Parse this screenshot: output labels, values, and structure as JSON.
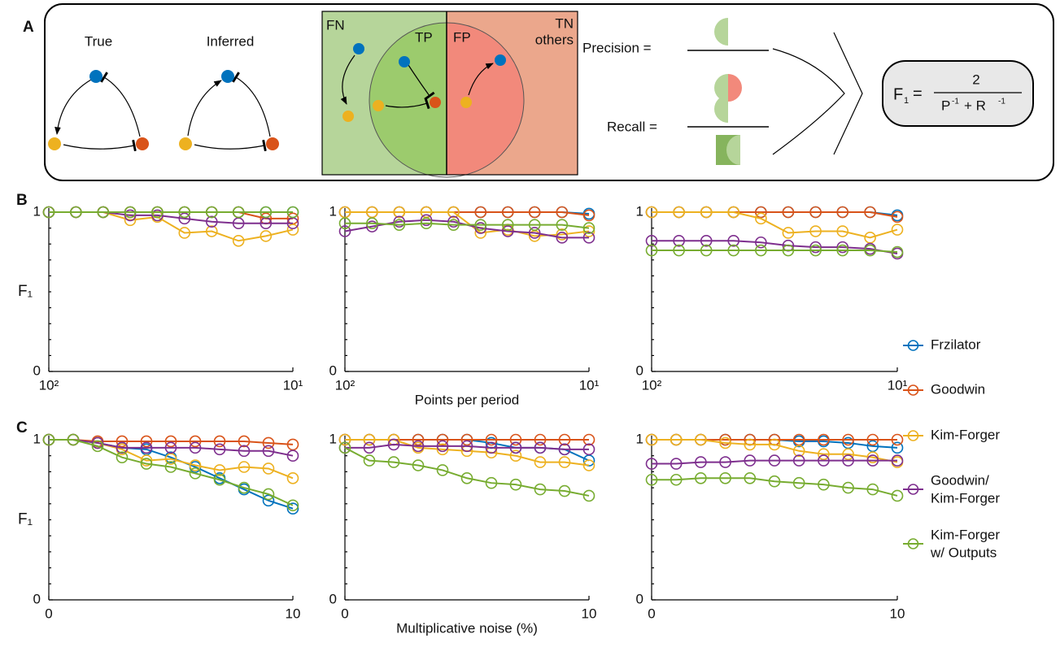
{
  "panel_a": {
    "label": "A",
    "networks": [
      "True",
      "Inferred"
    ],
    "venn": {
      "fn": "FN",
      "tp": "TP",
      "fp": "FP",
      "tn": [
        "TN",
        "others"
      ]
    },
    "precision": "Precision =",
    "recall": "Recall =",
    "f1": {
      "lhs": "F",
      "sub": "1",
      "eq": "=",
      "num": "2",
      "den": [
        "P",
        "-1",
        "+ R",
        "-1"
      ]
    }
  },
  "legend": {
    "position": "right",
    "entries": [
      {
        "name": [
          "Frzilator"
        ],
        "color": "#0072bd"
      },
      {
        "name": [
          "Goodwin"
        ],
        "color": "#d95319"
      },
      {
        "name": [
          "Kim-Forger"
        ],
        "color": "#edb120"
      },
      {
        "name": [
          "Goodwin/",
          "Kim-Forger"
        ],
        "color": "#7e2f8e"
      },
      {
        "name": [
          "Kim-Forger",
          "w/ Outputs"
        ],
        "color": "#77ac30"
      }
    ]
  },
  "chart_data": [
    {
      "type": "line",
      "panel_label": "B",
      "y_label": "F₁",
      "xscale": "log",
      "xlim": [
        100,
        10
      ],
      "xticks": [
        {
          "value": 100,
          "label": "10²"
        },
        {
          "value": 10,
          "label": "10¹"
        }
      ],
      "ylim": [
        0,
        1
      ],
      "yticks": [
        0,
        1
      ],
      "yminorticks": [
        0.1,
        0.2,
        0.3,
        0.4,
        0.5,
        0.6,
        0.7,
        0.8,
        0.9
      ],
      "x": [
        100,
        77.4,
        59.9,
        46.4,
        35.9,
        27.8,
        21.5,
        16.7,
        12.9,
        10
      ],
      "series": [
        {
          "values": [
            1,
            1,
            1,
            1,
            1,
            1,
            1,
            1,
            1,
            1
          ]
        },
        {
          "values": [
            1,
            1,
            1,
            1,
            1,
            1,
            1,
            1,
            0.96,
            0.96
          ]
        },
        {
          "values": [
            1,
            1,
            1,
            0.95,
            0.97,
            0.87,
            0.88,
            0.82,
            0.85,
            0.89
          ]
        },
        {
          "values": [
            1,
            1,
            1,
            0.98,
            0.98,
            0.96,
            0.94,
            0.93,
            0.93,
            0.93
          ]
        },
        {
          "values": [
            1,
            1,
            1,
            1,
            1,
            1,
            1,
            1,
            1,
            1
          ]
        }
      ]
    },
    {
      "type": "line",
      "x_label": "Points per period",
      "xscale": "log",
      "xlim": [
        100,
        10
      ],
      "xticks": [
        {
          "value": 100,
          "label": "10²"
        },
        {
          "value": 10,
          "label": "10¹"
        }
      ],
      "ylim": [
        0,
        1
      ],
      "yticks": [
        0,
        1
      ],
      "yminorticks": [
        0.1,
        0.2,
        0.3,
        0.4,
        0.5,
        0.6,
        0.7,
        0.8,
        0.9
      ],
      "x": [
        100,
        77.4,
        59.9,
        46.4,
        35.9,
        27.8,
        21.5,
        16.7,
        12.9,
        10
      ],
      "series": [
        {
          "values": [
            1,
            1,
            1,
            1,
            1,
            1,
            1,
            1,
            1,
            0.99
          ]
        },
        {
          "values": [
            1,
            1,
            1,
            1,
            1,
            1,
            1,
            1,
            1,
            0.98
          ]
        },
        {
          "values": [
            1,
            1,
            1,
            1,
            1,
            0.87,
            0.89,
            0.85,
            0.86,
            0.88
          ]
        },
        {
          "values": [
            0.88,
            0.91,
            0.94,
            0.95,
            0.94,
            0.9,
            0.88,
            0.87,
            0.84,
            0.84
          ]
        },
        {
          "values": [
            0.93,
            0.93,
            0.92,
            0.93,
            0.92,
            0.92,
            0.92,
            0.92,
            0.92,
            0.9
          ]
        }
      ]
    },
    {
      "type": "line",
      "xscale": "log",
      "xlim": [
        100,
        10
      ],
      "xticks": [
        {
          "value": 100,
          "label": "10²"
        },
        {
          "value": 10,
          "label": "10¹"
        }
      ],
      "ylim": [
        0,
        1
      ],
      "yticks": [
        0,
        1
      ],
      "yminorticks": [
        0.1,
        0.2,
        0.3,
        0.4,
        0.5,
        0.6,
        0.7,
        0.8,
        0.9
      ],
      "x": [
        100,
        77.4,
        59.9,
        46.4,
        35.9,
        27.8,
        21.5,
        16.7,
        12.9,
        10
      ],
      "series": [
        {
          "values": [
            1,
            1,
            1,
            1,
            1,
            1,
            1,
            1,
            1,
            0.98
          ]
        },
        {
          "values": [
            1,
            1,
            1,
            1,
            1,
            1,
            1,
            1,
            1,
            0.97
          ]
        },
        {
          "values": [
            1,
            1,
            1,
            1,
            0.96,
            0.87,
            0.88,
            0.88,
            0.84,
            0.89
          ]
        },
        {
          "values": [
            0.82,
            0.82,
            0.82,
            0.82,
            0.81,
            0.79,
            0.78,
            0.78,
            0.77,
            0.74
          ]
        },
        {
          "values": [
            0.76,
            0.76,
            0.76,
            0.76,
            0.76,
            0.76,
            0.76,
            0.76,
            0.76,
            0.75
          ]
        }
      ]
    },
    {
      "type": "line",
      "panel_label": "C",
      "y_label": "F₁",
      "xlim": [
        0,
        10
      ],
      "xticks": [
        0,
        10
      ],
      "ylim": [
        0,
        1
      ],
      "yticks": [
        0,
        1
      ],
      "yminorticks": [
        0.1,
        0.2,
        0.3,
        0.4,
        0.5,
        0.6,
        0.7,
        0.8,
        0.9
      ],
      "x": [
        0,
        1,
        2,
        3,
        4,
        5,
        6,
        7,
        8,
        9,
        10
      ],
      "series": [
        {
          "values": [
            1,
            1,
            0.98,
            0.95,
            0.94,
            0.89,
            0.83,
            0.76,
            0.69,
            0.62,
            0.57
          ]
        },
        {
          "values": [
            1,
            1,
            0.99,
            0.99,
            0.99,
            0.99,
            0.99,
            0.99,
            0.99,
            0.98,
            0.97
          ]
        },
        {
          "values": [
            1,
            1,
            0.98,
            0.94,
            0.87,
            0.88,
            0.84,
            0.81,
            0.83,
            0.82,
            0.76
          ]
        },
        {
          "values": [
            1,
            1,
            0.98,
            0.95,
            0.95,
            0.95,
            0.95,
            0.94,
            0.93,
            0.93,
            0.9
          ]
        },
        {
          "values": [
            1,
            1,
            0.96,
            0.89,
            0.85,
            0.83,
            0.79,
            0.75,
            0.7,
            0.66,
            0.59
          ]
        }
      ]
    },
    {
      "type": "line",
      "x_label": "Multiplicative noise (%)",
      "xlim": [
        0,
        10
      ],
      "xticks": [
        0,
        10
      ],
      "ylim": [
        0,
        1
      ],
      "yticks": [
        0,
        1
      ],
      "yminorticks": [
        0.1,
        0.2,
        0.3,
        0.4,
        0.5,
        0.6,
        0.7,
        0.8,
        0.9
      ],
      "x": [
        0,
        1,
        2,
        3,
        4,
        5,
        6,
        7,
        8,
        9,
        10
      ],
      "series": [
        {
          "values": [
            1,
            1,
            1,
            1,
            1,
            1,
            0.98,
            0.95,
            0.95,
            0.94,
            0.87
          ]
        },
        {
          "values": [
            1,
            1,
            1,
            1,
            1,
            1,
            1,
            1,
            1,
            1,
            1
          ]
        },
        {
          "values": [
            1,
            1,
            1,
            0.95,
            0.94,
            0.93,
            0.92,
            0.9,
            0.86,
            0.86,
            0.84
          ]
        },
        {
          "values": [
            0.95,
            0.95,
            0.97,
            0.96,
            0.96,
            0.96,
            0.95,
            0.95,
            0.95,
            0.94,
            0.94
          ]
        },
        {
          "values": [
            0.95,
            0.87,
            0.86,
            0.84,
            0.81,
            0.76,
            0.73,
            0.72,
            0.69,
            0.68,
            0.65
          ]
        }
      ]
    },
    {
      "type": "line",
      "xlim": [
        0,
        10
      ],
      "xticks": [
        0,
        10
      ],
      "ylim": [
        0,
        1
      ],
      "yticks": [
        0,
        1
      ],
      "yminorticks": [
        0.1,
        0.2,
        0.3,
        0.4,
        0.5,
        0.6,
        0.7,
        0.8,
        0.9
      ],
      "x": [
        0,
        1,
        2,
        3,
        4,
        5,
        6,
        7,
        8,
        9,
        10
      ],
      "series": [
        {
          "values": [
            1,
            1,
            1,
            1,
            1,
            1,
            0.99,
            0.99,
            0.98,
            0.96,
            0.95
          ]
        },
        {
          "values": [
            1,
            1,
            1,
            1,
            1,
            1,
            1,
            1,
            1,
            1,
            1
          ]
        },
        {
          "values": [
            1,
            1,
            1,
            0.98,
            0.97,
            0.97,
            0.93,
            0.91,
            0.91,
            0.89,
            0.86
          ]
        },
        {
          "values": [
            0.85,
            0.85,
            0.86,
            0.86,
            0.87,
            0.87,
            0.87,
            0.87,
            0.87,
            0.87,
            0.87
          ]
        },
        {
          "values": [
            0.75,
            0.75,
            0.76,
            0.76,
            0.76,
            0.74,
            0.73,
            0.72,
            0.7,
            0.69,
            0.65
          ]
        }
      ]
    }
  ]
}
